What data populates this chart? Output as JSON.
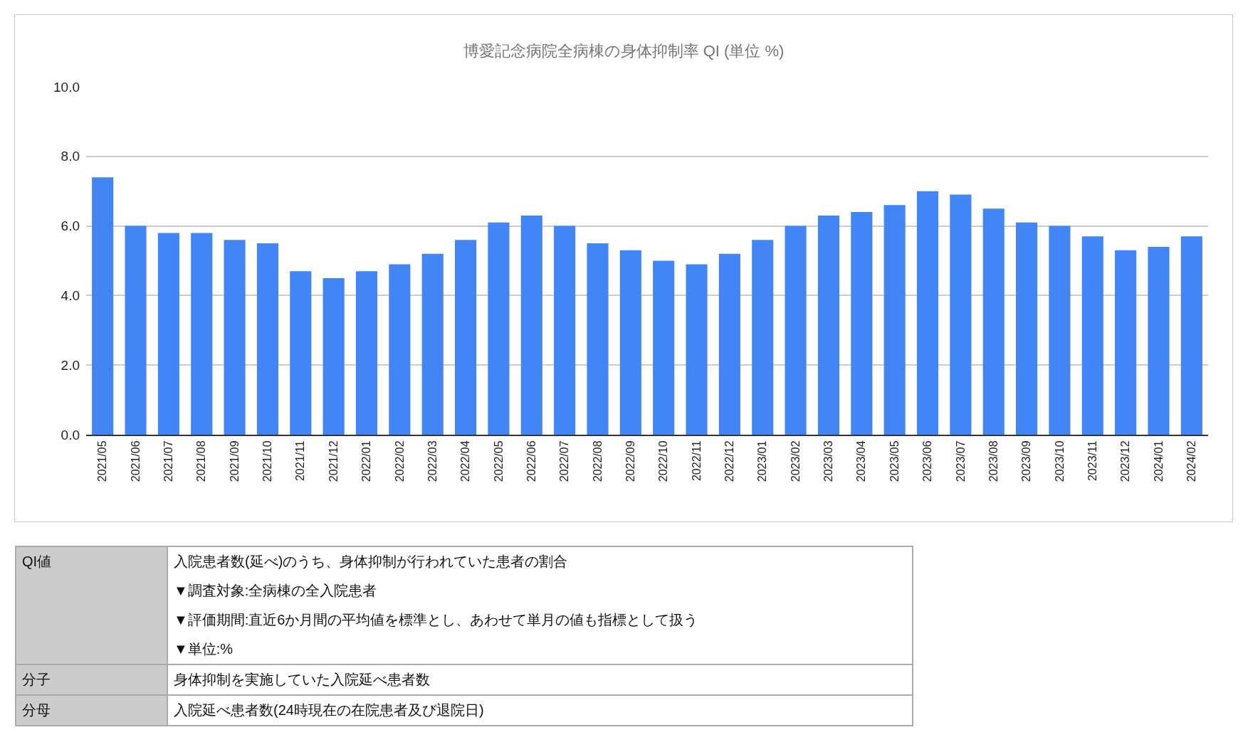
{
  "chart_data": {
    "type": "bar",
    "title": "博愛記念病院全病棟の身体抑制率 QI (単位 %)",
    "categories": [
      "2021/05",
      "2021/06",
      "2021/07",
      "2021/08",
      "2021/09",
      "2021/10",
      "2021/11",
      "2021/12",
      "2022/01",
      "2022/02",
      "2022/03",
      "2022/04",
      "2022/05",
      "2022/06",
      "2022/07",
      "2022/08",
      "2022/09",
      "2022/10",
      "2022/11",
      "2022/12",
      "2023/01",
      "2023/02",
      "2023/03",
      "2023/04",
      "2023/05",
      "2023/06",
      "2023/07",
      "2023/08",
      "2023/09",
      "2023/10",
      "2023/11",
      "2023/12",
      "2024/01",
      "2024/02"
    ],
    "values": [
      7.4,
      6.0,
      5.8,
      5.8,
      5.6,
      5.5,
      4.7,
      4.5,
      4.7,
      4.9,
      5.2,
      5.6,
      6.1,
      6.3,
      6.0,
      5.5,
      5.3,
      5.0,
      4.9,
      5.2,
      5.6,
      6.0,
      6.3,
      6.4,
      6.6,
      7.0,
      6.9,
      6.5,
      6.1,
      6.0,
      5.7,
      5.3,
      5.4,
      5.7
    ],
    "color": "#4285f4",
    "ylim": [
      0,
      10
    ],
    "yticks": [
      {
        "value": 0,
        "label": "0.0"
      },
      {
        "value": 2,
        "label": "2.0"
      },
      {
        "value": 4,
        "label": "4.0"
      },
      {
        "value": 6,
        "label": "6.0"
      },
      {
        "value": 8,
        "label": "8.0"
      },
      {
        "value": 10,
        "label": "10.0"
      }
    ],
    "grid": "y",
    "annotations": [
      "QI値",
      "入院患者数(延べ)のうち、身体抑制が行われていた患者の割合",
      "▼調査対象:全病棟の全入院患者",
      "▼評価期間:直近6か月間の平均値を標準とし、あわせて単月の値も指標として扱う",
      "▼単位:%",
      "分子",
      "身体抑制を実施していた入院延べ患者数",
      "分母",
      "入院延べ患者数(24時現在の在院患者及び退院日)"
    ]
  }
}
